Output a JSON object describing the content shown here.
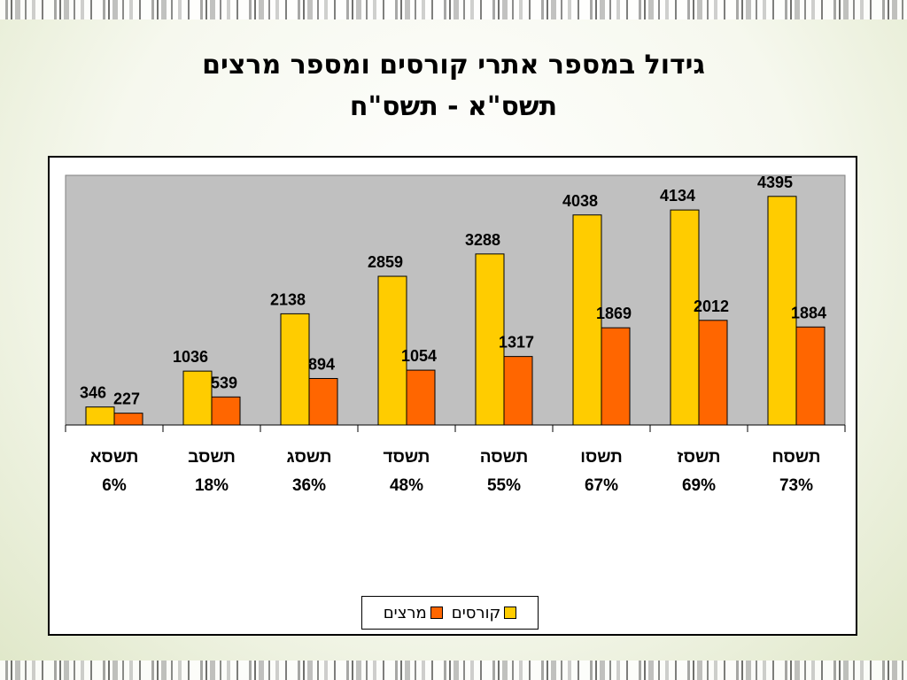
{
  "slide": {
    "title_line1": "גידול במספר אתרי קורסים ומספר מרצים",
    "title_line2": "תשס\"א - תשס\"ח"
  },
  "chart_data": {
    "type": "bar",
    "categories": [
      "תשסא",
      "תשסב",
      "תשסג",
      "תשסד",
      "תשסה",
      "תשסו",
      "תשסז",
      "תשסח"
    ],
    "category_percents": [
      "6%",
      "18%",
      "36%",
      "48%",
      "55%",
      "67%",
      "69%",
      "73%"
    ],
    "series": [
      {
        "name": "קורסים",
        "values": [
          346,
          1036,
          2138,
          2859,
          3288,
          4038,
          4134,
          4395
        ],
        "color": "#FFCC00"
      },
      {
        "name": "מרצים",
        "values": [
          227,
          539,
          894,
          1054,
          1317,
          1869,
          2012,
          1884
        ],
        "color": "#FF6600"
      }
    ],
    "ylim": [
      0,
      4800
    ],
    "grid": false,
    "plot_background": "#C0C0C0",
    "legend_position": "bottom"
  }
}
